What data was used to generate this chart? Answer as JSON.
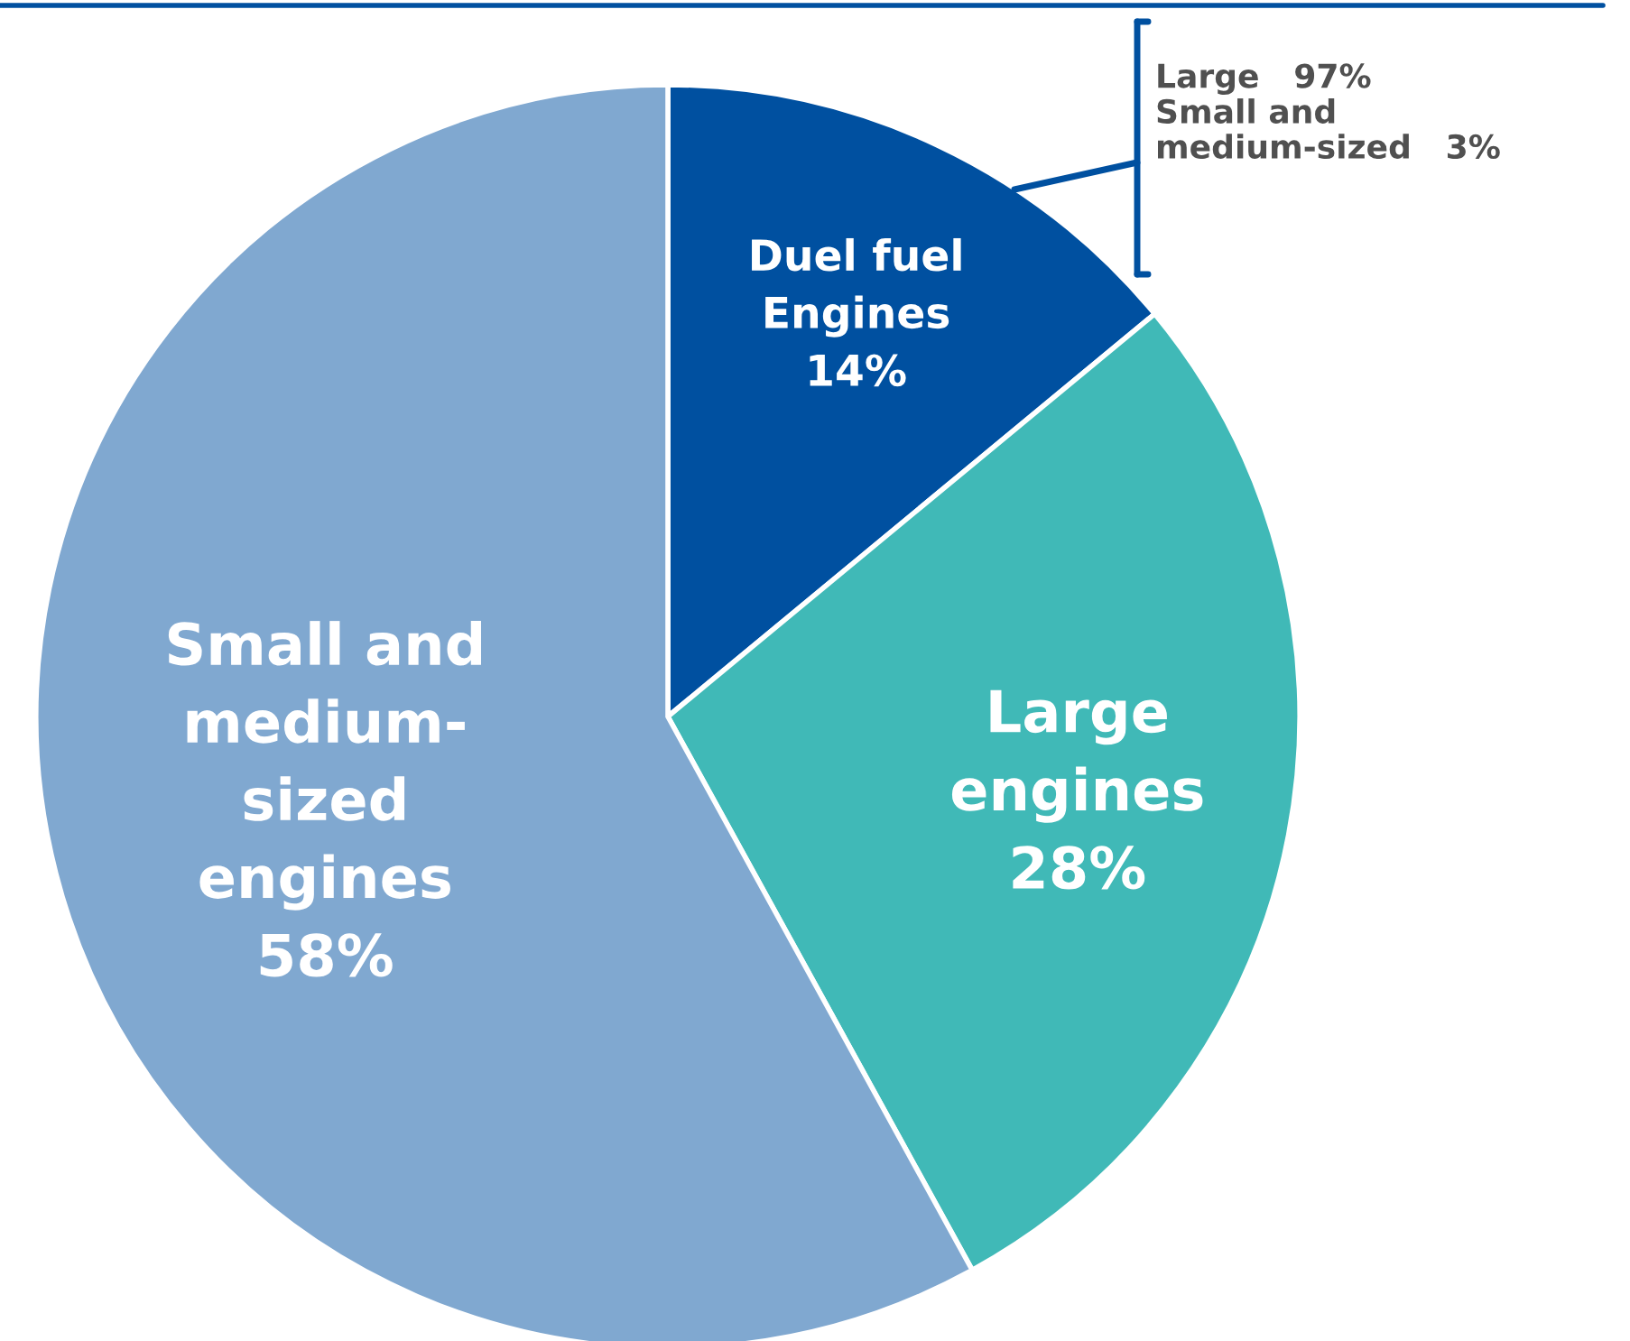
{
  "chart_data": {
    "type": "pie",
    "categories": [
      "Duel fuel\nEngines",
      "Large\nengines",
      "Small and\nmedium-\nsized\nengines"
    ],
    "values": [
      14,
      28,
      58
    ],
    "value_labels": [
      "14%",
      "28%",
      "58%"
    ],
    "colors": [
      "#0050a0",
      "#40b9b7",
      "#80a8d0"
    ],
    "annotations": [
      "Large   97%\nSmall and\nmedium-sized   3%"
    ]
  }
}
